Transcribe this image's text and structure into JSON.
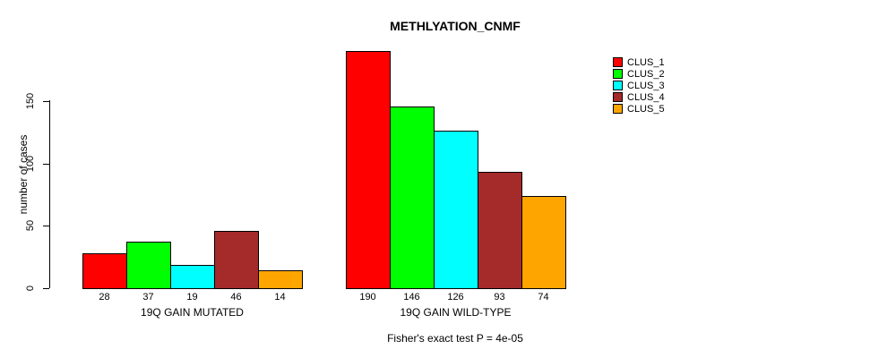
{
  "chart_data": {
    "type": "bar",
    "title": "METHLYATION_CNMF",
    "ylabel": "number of cases",
    "yticks": [
      0,
      50,
      100,
      150
    ],
    "ylim": [
      0,
      190
    ],
    "grid": false,
    "legend_position": "right",
    "legend": [
      {
        "label": "CLUS_1",
        "color": "#FF0000"
      },
      {
        "label": "CLUS_2",
        "color": "#00FF00"
      },
      {
        "label": "CLUS_3",
        "color": "#00FFFF"
      },
      {
        "label": "CLUS_4",
        "color": "#A52A2A"
      },
      {
        "label": "CLUS_5",
        "color": "#FFA500"
      }
    ],
    "groups": [
      {
        "label": "19Q GAIN MUTATED",
        "values": [
          28,
          37,
          19,
          46,
          14
        ]
      },
      {
        "label": "19Q GAIN WILD-TYPE",
        "values": [
          190,
          146,
          126,
          93,
          74
        ]
      }
    ],
    "footnote": "Fisher's exact test P = 4e-05"
  }
}
